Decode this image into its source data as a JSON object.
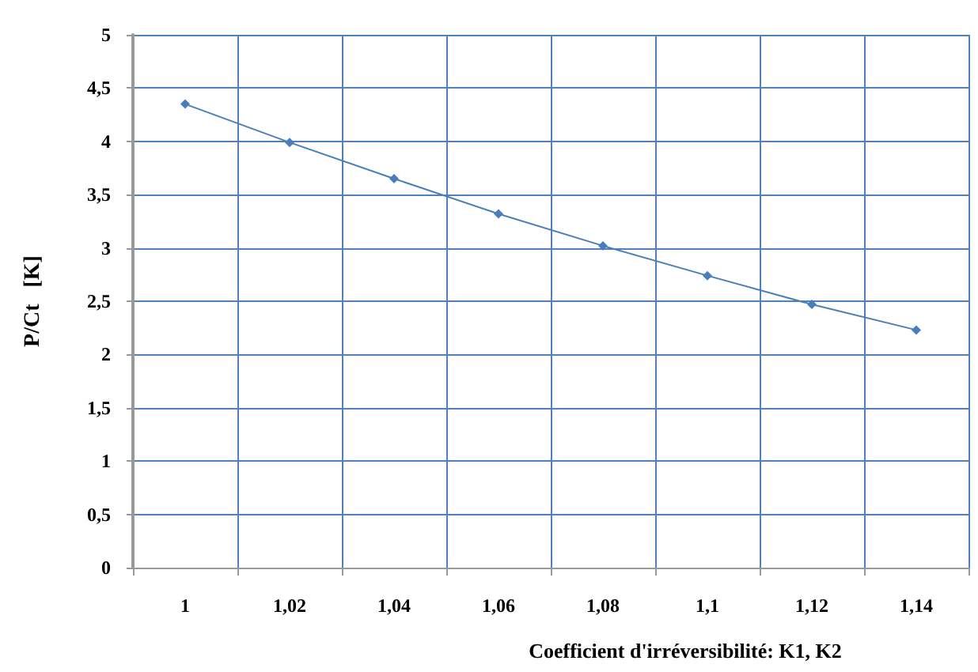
{
  "chart_data": {
    "type": "line",
    "xlabel": "Coefficient d'irréversibilité: K1, K2",
    "ylabel": "P/Ct   [K]",
    "categories": [
      "1",
      "1,02",
      "1,04",
      "1,06",
      "1,08",
      "1,1",
      "1,12",
      "1,14"
    ],
    "series": [
      {
        "color": "#4a7ebb",
        "values": [
          4.35,
          3.99,
          3.65,
          3.32,
          3.02,
          2.74,
          2.47,
          2.23
        ]
      }
    ],
    "ylim": [
      0,
      5
    ],
    "yticks": [
      0,
      {
        "value": 0.5,
        "label": "0,5"
      },
      1,
      {
        "value": 1.5,
        "label": "1,5"
      },
      2,
      {
        "value": 2.5,
        "label": "2,5"
      },
      3,
      {
        "value": 3.5,
        "label": "3,5"
      },
      4,
      {
        "value": 4.5,
        "label": "4,5"
      },
      5
    ],
    "grid": true,
    "marker": "diamond",
    "line_style": "solid"
  }
}
